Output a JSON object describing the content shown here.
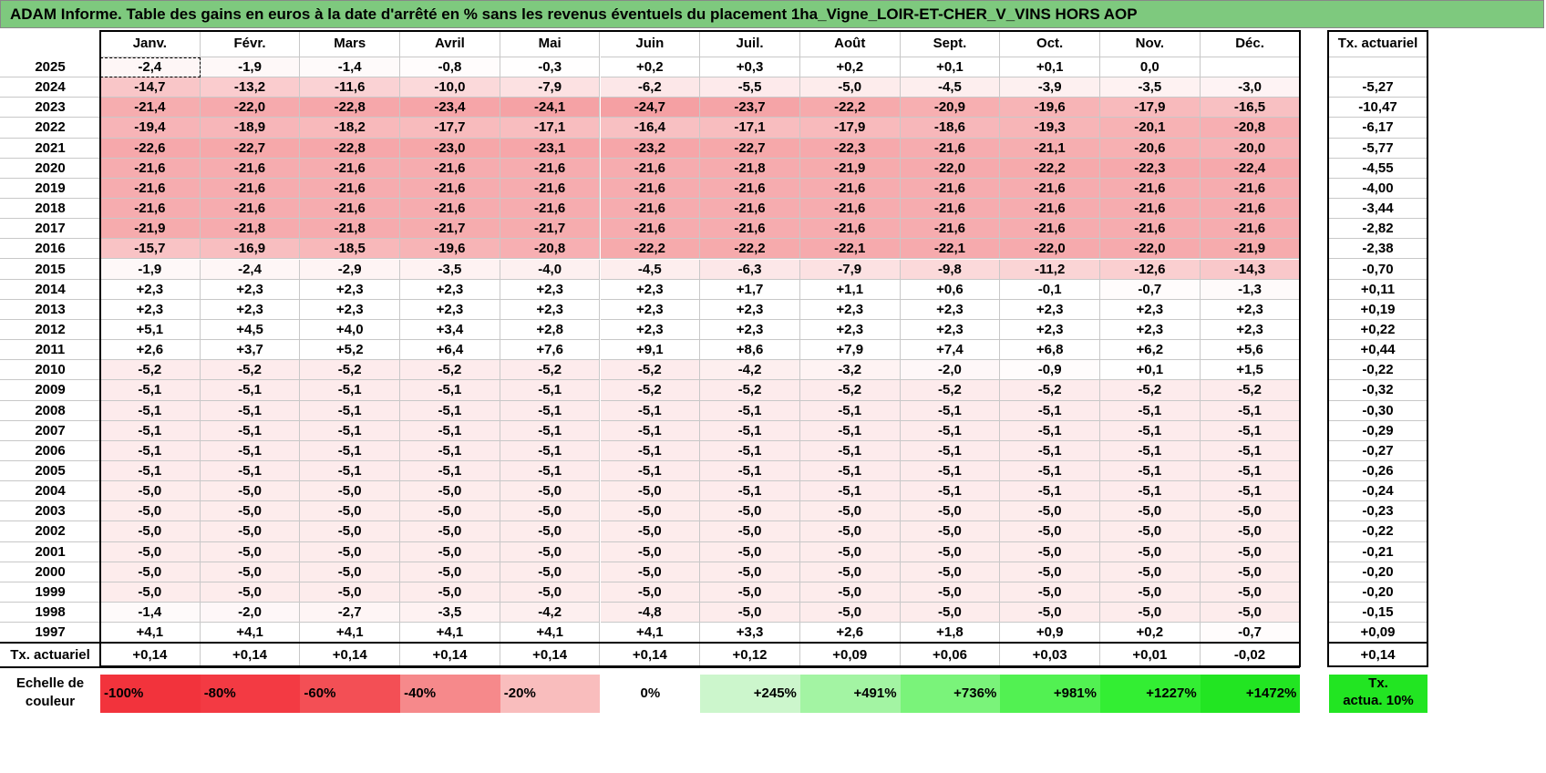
{
  "title": "ADAM Informe. Table des gains en euros à la date d'arrêté en % sans les revenus éventuels du placement 1ha_Vigne_LOIR-ET-CHER_V_VINS HORS AOP",
  "months": [
    "Janv.",
    "Févr.",
    "Mars",
    "Avril",
    "Mai",
    "Juin",
    "Juil.",
    "Août",
    "Sept.",
    "Oct.",
    "Nov.",
    "Déc."
  ],
  "rate_header": "Tx. actuariel",
  "rows": [
    {
      "year": "2025",
      "values": [
        "-2,4",
        "-1,9",
        "-1,4",
        "-0,8",
        "-0,3",
        "+0,2",
        "+0,3",
        "+0,2",
        "+0,1",
        "+0,1",
        "0,0",
        ""
      ],
      "rate": ""
    },
    {
      "year": "2024",
      "values": [
        "-14,7",
        "-13,2",
        "-11,6",
        "-10,0",
        "-7,9",
        "-6,2",
        "-5,5",
        "-5,0",
        "-4,5",
        "-3,9",
        "-3,5",
        "-3,0"
      ],
      "rate": "-5,27"
    },
    {
      "year": "2023",
      "values": [
        "-21,4",
        "-22,0",
        "-22,8",
        "-23,4",
        "-24,1",
        "-24,7",
        "-23,7",
        "-22,2",
        "-20,9",
        "-19,6",
        "-17,9",
        "-16,5"
      ],
      "rate": "-10,47"
    },
    {
      "year": "2022",
      "values": [
        "-19,4",
        "-18,9",
        "-18,2",
        "-17,7",
        "-17,1",
        "-16,4",
        "-17,1",
        "-17,9",
        "-18,6",
        "-19,3",
        "-20,1",
        "-20,8"
      ],
      "rate": "-6,17"
    },
    {
      "year": "2021",
      "values": [
        "-22,6",
        "-22,7",
        "-22,8",
        "-23,0",
        "-23,1",
        "-23,2",
        "-22,7",
        "-22,3",
        "-21,6",
        "-21,1",
        "-20,6",
        "-20,0"
      ],
      "rate": "-5,77"
    },
    {
      "year": "2020",
      "values": [
        "-21,6",
        "-21,6",
        "-21,6",
        "-21,6",
        "-21,6",
        "-21,6",
        "-21,8",
        "-21,9",
        "-22,0",
        "-22,2",
        "-22,3",
        "-22,4"
      ],
      "rate": "-4,55"
    },
    {
      "year": "2019",
      "values": [
        "-21,6",
        "-21,6",
        "-21,6",
        "-21,6",
        "-21,6",
        "-21,6",
        "-21,6",
        "-21,6",
        "-21,6",
        "-21,6",
        "-21,6",
        "-21,6"
      ],
      "rate": "-4,00"
    },
    {
      "year": "2018",
      "values": [
        "-21,6",
        "-21,6",
        "-21,6",
        "-21,6",
        "-21,6",
        "-21,6",
        "-21,6",
        "-21,6",
        "-21,6",
        "-21,6",
        "-21,6",
        "-21,6"
      ],
      "rate": "-3,44"
    },
    {
      "year": "2017",
      "values": [
        "-21,9",
        "-21,8",
        "-21,8",
        "-21,7",
        "-21,7",
        "-21,6",
        "-21,6",
        "-21,6",
        "-21,6",
        "-21,6",
        "-21,6",
        "-21,6"
      ],
      "rate": "-2,82"
    },
    {
      "year": "2016",
      "values": [
        "-15,7",
        "-16,9",
        "-18,5",
        "-19,6",
        "-20,8",
        "-22,2",
        "-22,2",
        "-22,1",
        "-22,1",
        "-22,0",
        "-22,0",
        "-21,9"
      ],
      "rate": "-2,38"
    },
    {
      "year": "2015",
      "values": [
        "-1,9",
        "-2,4",
        "-2,9",
        "-3,5",
        "-4,0",
        "-4,5",
        "-6,3",
        "-7,9",
        "-9,8",
        "-11,2",
        "-12,6",
        "-14,3"
      ],
      "rate": "-0,70"
    },
    {
      "year": "2014",
      "values": [
        "+2,3",
        "+2,3",
        "+2,3",
        "+2,3",
        "+2,3",
        "+2,3",
        "+1,7",
        "+1,1",
        "+0,6",
        "-0,1",
        "-0,7",
        "-1,3"
      ],
      "rate": "+0,11"
    },
    {
      "year": "2013",
      "values": [
        "+2,3",
        "+2,3",
        "+2,3",
        "+2,3",
        "+2,3",
        "+2,3",
        "+2,3",
        "+2,3",
        "+2,3",
        "+2,3",
        "+2,3",
        "+2,3"
      ],
      "rate": "+0,19"
    },
    {
      "year": "2012",
      "values": [
        "+5,1",
        "+4,5",
        "+4,0",
        "+3,4",
        "+2,8",
        "+2,3",
        "+2,3",
        "+2,3",
        "+2,3",
        "+2,3",
        "+2,3",
        "+2,3"
      ],
      "rate": "+0,22"
    },
    {
      "year": "2011",
      "values": [
        "+2,6",
        "+3,7",
        "+5,2",
        "+6,4",
        "+7,6",
        "+9,1",
        "+8,6",
        "+7,9",
        "+7,4",
        "+6,8",
        "+6,2",
        "+5,6"
      ],
      "rate": "+0,44"
    },
    {
      "year": "2010",
      "values": [
        "-5,2",
        "-5,2",
        "-5,2",
        "-5,2",
        "-5,2",
        "-5,2",
        "-4,2",
        "-3,2",
        "-2,0",
        "-0,9",
        "+0,1",
        "+1,5"
      ],
      "rate": "-0,22"
    },
    {
      "year": "2009",
      "values": [
        "-5,1",
        "-5,1",
        "-5,1",
        "-5,1",
        "-5,1",
        "-5,2",
        "-5,2",
        "-5,2",
        "-5,2",
        "-5,2",
        "-5,2",
        "-5,2"
      ],
      "rate": "-0,32"
    },
    {
      "year": "2008",
      "values": [
        "-5,1",
        "-5,1",
        "-5,1",
        "-5,1",
        "-5,1",
        "-5,1",
        "-5,1",
        "-5,1",
        "-5,1",
        "-5,1",
        "-5,1",
        "-5,1"
      ],
      "rate": "-0,30"
    },
    {
      "year": "2007",
      "values": [
        "-5,1",
        "-5,1",
        "-5,1",
        "-5,1",
        "-5,1",
        "-5,1",
        "-5,1",
        "-5,1",
        "-5,1",
        "-5,1",
        "-5,1",
        "-5,1"
      ],
      "rate": "-0,29"
    },
    {
      "year": "2006",
      "values": [
        "-5,1",
        "-5,1",
        "-5,1",
        "-5,1",
        "-5,1",
        "-5,1",
        "-5,1",
        "-5,1",
        "-5,1",
        "-5,1",
        "-5,1",
        "-5,1"
      ],
      "rate": "-0,27"
    },
    {
      "year": "2005",
      "values": [
        "-5,1",
        "-5,1",
        "-5,1",
        "-5,1",
        "-5,1",
        "-5,1",
        "-5,1",
        "-5,1",
        "-5,1",
        "-5,1",
        "-5,1",
        "-5,1"
      ],
      "rate": "-0,26"
    },
    {
      "year": "2004",
      "values": [
        "-5,0",
        "-5,0",
        "-5,0",
        "-5,0",
        "-5,0",
        "-5,0",
        "-5,1",
        "-5,1",
        "-5,1",
        "-5,1",
        "-5,1",
        "-5,1"
      ],
      "rate": "-0,24"
    },
    {
      "year": "2003",
      "values": [
        "-5,0",
        "-5,0",
        "-5,0",
        "-5,0",
        "-5,0",
        "-5,0",
        "-5,0",
        "-5,0",
        "-5,0",
        "-5,0",
        "-5,0",
        "-5,0"
      ],
      "rate": "-0,23"
    },
    {
      "year": "2002",
      "values": [
        "-5,0",
        "-5,0",
        "-5,0",
        "-5,0",
        "-5,0",
        "-5,0",
        "-5,0",
        "-5,0",
        "-5,0",
        "-5,0",
        "-5,0",
        "-5,0"
      ],
      "rate": "-0,22"
    },
    {
      "year": "2001",
      "values": [
        "-5,0",
        "-5,0",
        "-5,0",
        "-5,0",
        "-5,0",
        "-5,0",
        "-5,0",
        "-5,0",
        "-5,0",
        "-5,0",
        "-5,0",
        "-5,0"
      ],
      "rate": "-0,21"
    },
    {
      "year": "2000",
      "values": [
        "-5,0",
        "-5,0",
        "-5,0",
        "-5,0",
        "-5,0",
        "-5,0",
        "-5,0",
        "-5,0",
        "-5,0",
        "-5,0",
        "-5,0",
        "-5,0"
      ],
      "rate": "-0,20"
    },
    {
      "year": "1999",
      "values": [
        "-5,0",
        "-5,0",
        "-5,0",
        "-5,0",
        "-5,0",
        "-5,0",
        "-5,0",
        "-5,0",
        "-5,0",
        "-5,0",
        "-5,0",
        "-5,0"
      ],
      "rate": "-0,20"
    },
    {
      "year": "1998",
      "values": [
        "-1,4",
        "-2,0",
        "-2,7",
        "-3,5",
        "-4,2",
        "-4,8",
        "-5,0",
        "-5,0",
        "-5,0",
        "-5,0",
        "-5,0",
        "-5,0"
      ],
      "rate": "-0,15"
    },
    {
      "year": "1997",
      "values": [
        "+4,1",
        "+4,1",
        "+4,1",
        "+4,1",
        "+4,1",
        "+4,1",
        "+3,3",
        "+2,6",
        "+1,8",
        "+0,9",
        "+0,2",
        "-0,7"
      ],
      "rate": "+0,09"
    }
  ],
  "footer": {
    "label": "Tx. actuariel",
    "values": [
      "+0,14",
      "+0,14",
      "+0,14",
      "+0,14",
      "+0,14",
      "+0,14",
      "+0,12",
      "+0,09",
      "+0,06",
      "+0,03",
      "+0,01",
      "-0,02"
    ],
    "rate": "+0,14"
  },
  "scale": {
    "label_line1": "Echelle de",
    "label_line2": "couleur",
    "items": [
      {
        "text": "-100%",
        "color": "#f2333c",
        "align": "left"
      },
      {
        "text": "-80%",
        "color": "#f33a43",
        "align": "left"
      },
      {
        "text": "-60%",
        "color": "#f34f55",
        "align": "left"
      },
      {
        "text": "-40%",
        "color": "#f6898b",
        "align": "left"
      },
      {
        "text": "-20%",
        "color": "#f9bdbd",
        "align": "left"
      },
      {
        "text": "0%",
        "color": "#ffffff",
        "align": "center"
      },
      {
        "text": "+245%",
        "color": "#ccf6cc",
        "align": "right"
      },
      {
        "text": "+491%",
        "color": "#a3f4a3",
        "align": "right"
      },
      {
        "text": "+736%",
        "color": "#7af37a",
        "align": "right"
      },
      {
        "text": "+981%",
        "color": "#52f152",
        "align": "right"
      },
      {
        "text": "+1227%",
        "color": "#33ee33",
        "align": "right"
      },
      {
        "text": "+1472%",
        "color": "#22e522",
        "align": "right"
      }
    ],
    "rate_line1": "Tx.",
    "rate_line2": "actua. 10%",
    "rate_color": "#22e522"
  },
  "colors": {
    "title_bg": "#7ec97e",
    "negative_max": "#f8a3a6",
    "neutral": "#ffffff"
  }
}
